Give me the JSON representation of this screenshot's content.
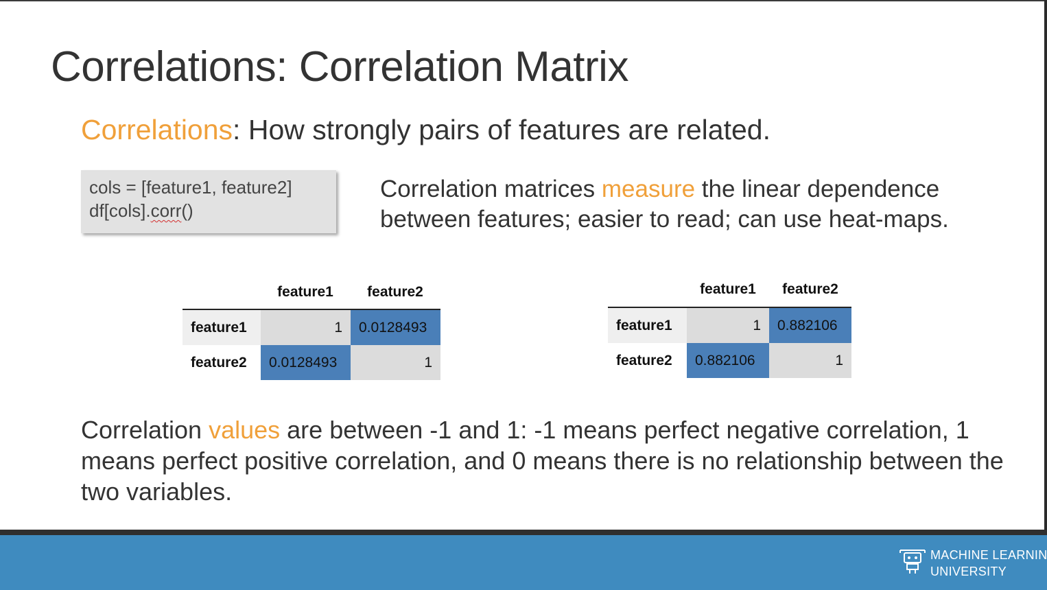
{
  "slide": {
    "title": "Correlations: Correlation Matrix",
    "subtitle_highlight": "Correlations",
    "subtitle_rest": ": How strongly pairs of features are related."
  },
  "code": {
    "line1": "cols = [feature1, feature2]",
    "line2_prefix": "df[cols].",
    "line2_squiggle": "corr",
    "line2_suffix": "()"
  },
  "description": {
    "part1": "Correlation matrices ",
    "highlight": "measure",
    "part2": " the linear dependence between features; easier to read; can use heat-maps."
  },
  "matrix_left": {
    "columns": [
      "feature1",
      "feature2"
    ],
    "rows": [
      {
        "label": "feature1",
        "values": [
          "1",
          "0.0128493"
        ]
      },
      {
        "label": "feature2",
        "values": [
          "0.0128493",
          "1"
        ]
      }
    ]
  },
  "matrix_right": {
    "columns": [
      "feature1",
      "feature2"
    ],
    "rows": [
      {
        "label": "feature1",
        "values": [
          "1",
          "0.882106"
        ]
      },
      {
        "label": "feature2",
        "values": [
          "0.882106",
          "1"
        ]
      }
    ]
  },
  "bottom": {
    "part1": "Correlation ",
    "highlight": "values",
    "part2": " are between -1 and 1: -1 means perfect negative correlation, 1 means perfect positive correlation, and 0 means there is no relationship between the two variables."
  },
  "footer": {
    "logo_line1": "MACHINE LEARNING",
    "logo_line2": "UNIVERSITY"
  },
  "colors": {
    "accent": "#f0a03a",
    "heat_high": "#4a7fb8",
    "diag": "#dcdcdc",
    "footer": "#3f8bbf"
  }
}
